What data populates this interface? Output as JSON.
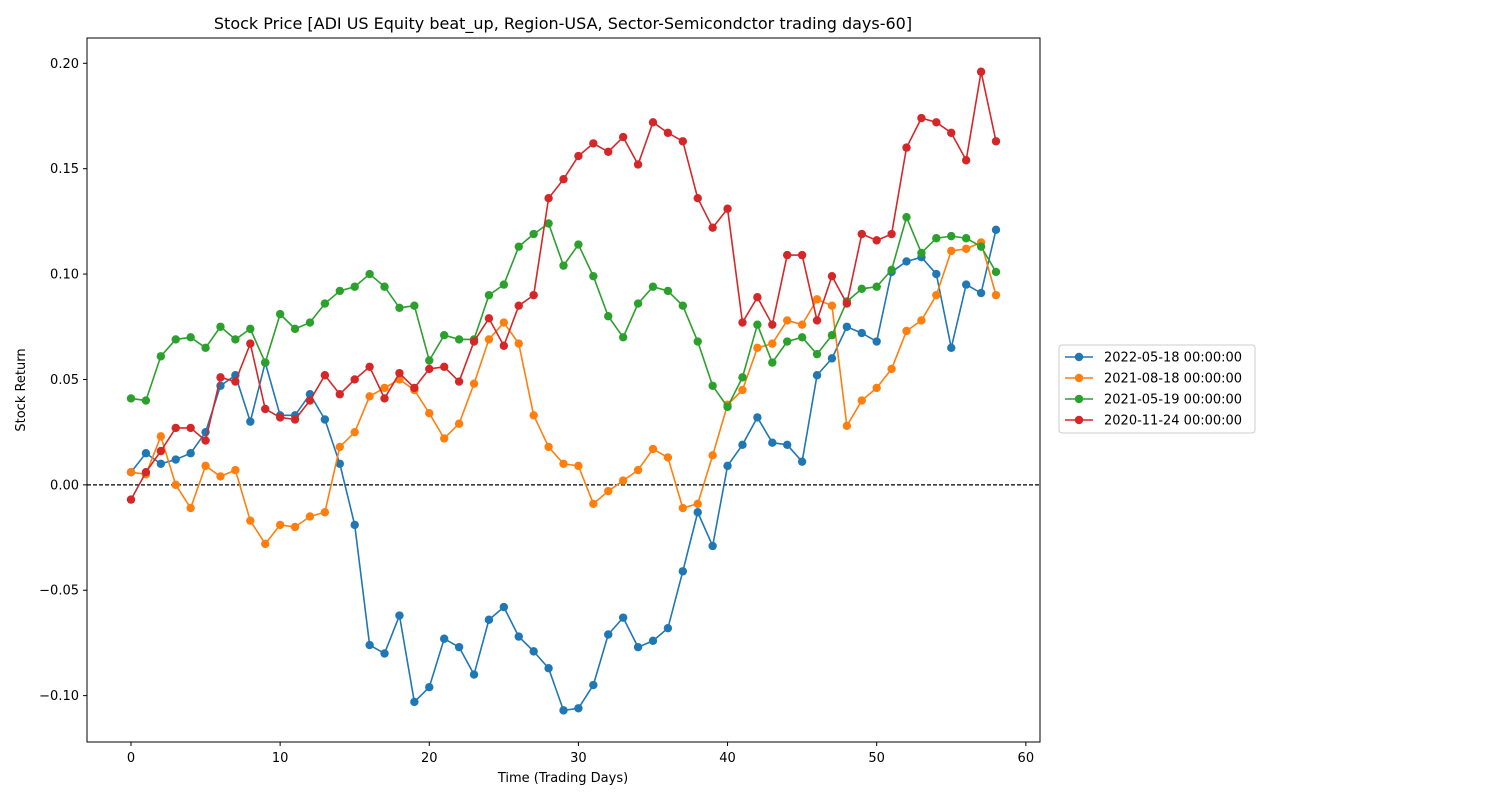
{
  "chart_data": {
    "type": "line",
    "title": "Stock Price [ADI US Equity beat_up, Region-USA, Sector-Semicondctor trading days-60]",
    "xlabel": "Time (Trading Days)",
    "ylabel": "Stock Return",
    "xlim": [
      -2.95,
      60.95
    ],
    "ylim": [
      -0.122,
      0.212
    ],
    "xticks": [
      0,
      10,
      20,
      30,
      40,
      50,
      60
    ],
    "xtick_labels": [
      "0",
      "10",
      "20",
      "30",
      "40",
      "50",
      "60"
    ],
    "yticks": [
      -0.1,
      -0.05,
      0.0,
      0.05,
      0.1,
      0.15,
      0.2
    ],
    "ytick_labels": [
      "−0.10",
      "−0.05",
      "0.00",
      "0.05",
      "0.10",
      "0.15",
      "0.20"
    ],
    "reference_line": {
      "y": 0,
      "style": "dashed",
      "color": "#000000"
    },
    "legend_position": "right",
    "grid": false,
    "series": [
      {
        "name": "2022-05-18 00:00:00",
        "color": "#1f77b4",
        "values": [
          0.006,
          0.015,
          0.01,
          0.012,
          0.015,
          0.025,
          0.047,
          0.052,
          0.03,
          0.058,
          0.033,
          0.033,
          0.043,
          0.031,
          0.01,
          -0.019,
          -0.076,
          -0.08,
          -0.062,
          -0.103,
          -0.096,
          -0.073,
          -0.077,
          -0.09,
          -0.064,
          -0.058,
          -0.072,
          -0.079,
          -0.087,
          -0.107,
          -0.106,
          -0.095,
          -0.071,
          -0.063,
          -0.077,
          -0.074,
          -0.068,
          -0.041,
          -0.013,
          -0.029,
          0.009,
          0.019,
          0.032,
          0.02,
          0.019,
          0.011,
          0.052,
          0.06,
          0.075,
          0.072,
          0.068,
          0.101,
          0.106,
          0.108,
          0.1,
          0.065,
          0.095,
          0.091,
          0.121
        ]
      },
      {
        "name": "2021-08-18 00:00:00",
        "color": "#ff7f0e",
        "values": [
          0.006,
          0.005,
          0.023,
          0.0,
          -0.011,
          0.009,
          0.004,
          0.007,
          -0.017,
          -0.028,
          -0.019,
          -0.02,
          -0.015,
          -0.013,
          0.018,
          0.025,
          0.042,
          0.046,
          0.05,
          0.045,
          0.034,
          0.022,
          0.029,
          0.048,
          0.069,
          0.077,
          0.067,
          0.033,
          0.018,
          0.01,
          0.009,
          -0.009,
          -0.003,
          0.002,
          0.007,
          0.017,
          0.013,
          -0.011,
          -0.009,
          0.014,
          0.038,
          0.045,
          0.065,
          0.067,
          0.078,
          0.076,
          0.088,
          0.085,
          0.028,
          0.04,
          0.046,
          0.055,
          0.073,
          0.078,
          0.09,
          0.111,
          0.112,
          0.115,
          0.09
        ]
      },
      {
        "name": "2021-05-19 00:00:00",
        "color": "#2ca02c",
        "values": [
          0.041,
          0.04,
          0.061,
          0.069,
          0.07,
          0.065,
          0.075,
          0.069,
          0.074,
          0.058,
          0.081,
          0.074,
          0.077,
          0.086,
          0.092,
          0.094,
          0.1,
          0.094,
          0.084,
          0.085,
          0.059,
          0.071,
          0.069,
          0.069,
          0.09,
          0.095,
          0.113,
          0.119,
          0.124,
          0.104,
          0.114,
          0.099,
          0.08,
          0.07,
          0.086,
          0.094,
          0.092,
          0.085,
          0.068,
          0.047,
          0.037,
          0.051,
          0.076,
          0.058,
          0.068,
          0.07,
          0.062,
          0.071,
          0.087,
          0.093,
          0.094,
          0.102,
          0.127,
          0.11,
          0.117,
          0.118,
          0.117,
          0.113,
          0.101
        ]
      },
      {
        "name": "2020-11-24 00:00:00",
        "color": "#d62728",
        "values": [
          -0.007,
          0.006,
          0.016,
          0.027,
          0.027,
          0.021,
          0.051,
          0.049,
          0.067,
          0.036,
          0.032,
          0.031,
          0.04,
          0.052,
          0.043,
          0.05,
          0.056,
          0.041,
          0.053,
          0.046,
          0.055,
          0.056,
          0.049,
          0.068,
          0.079,
          0.066,
          0.085,
          0.09,
          0.136,
          0.145,
          0.156,
          0.162,
          0.158,
          0.165,
          0.152,
          0.172,
          0.167,
          0.163,
          0.136,
          0.122,
          0.131,
          0.077,
          0.089,
          0.076,
          0.109,
          0.109,
          0.078,
          0.099,
          0.086,
          0.119,
          0.116,
          0.119,
          0.16,
          0.174,
          0.172,
          0.167,
          0.154,
          0.196,
          0.163
        ]
      }
    ]
  }
}
